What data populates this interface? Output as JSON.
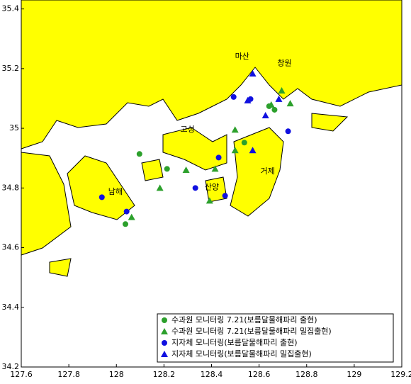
{
  "chart_data": {
    "type": "scatter",
    "xlim": [
      127.6,
      129.2
    ],
    "ylim": [
      34.2,
      35.43
    ],
    "xticks": [
      127.6,
      127.8,
      128,
      128.2,
      128.4,
      128.6,
      128.8,
      129,
      129.2
    ],
    "yticks": [
      34.2,
      34.4,
      34.6,
      34.8,
      35,
      35.2,
      35.4
    ],
    "annotations": [
      {
        "text": "마산",
        "x": 128.529,
        "y": 35.24
      },
      {
        "text": "창원",
        "x": 128.707,
        "y": 35.217
      },
      {
        "text": "고성",
        "x": 128.299,
        "y": 34.995
      },
      {
        "text": "거제",
        "x": 128.636,
        "y": 34.855
      },
      {
        "text": "남해",
        "x": 127.996,
        "y": 34.786
      },
      {
        "text": "산양",
        "x": 128.401,
        "y": 34.802
      }
    ],
    "series": [
      {
        "name": "수과원 모니터링 7.21(보름달물해파리 출현)",
        "color": "#2ca02c",
        "marker": "circle",
        "x": [
          128.097,
          128.213,
          128.038,
          128.538,
          128.665,
          128.642
        ],
        "values": [
          34.914,
          34.864,
          34.679,
          34.952,
          35.062,
          35.074
        ]
      },
      {
        "name": "수과원 모니터링 7.21(보름달물해파리 밀집출현)",
        "color": "#2ca02c",
        "marker": "triangle",
        "x": [
          128.293,
          128.183,
          128.064,
          128.499,
          128.499,
          128.415,
          128.392,
          128.731,
          128.651,
          128.695
        ],
        "values": [
          34.86,
          34.8,
          34.702,
          34.995,
          34.926,
          34.864,
          34.757,
          35.083,
          35.079,
          35.126
        ]
      },
      {
        "name": "지자체 모니터링(보름달물해파리 출현)",
        "color": "#1010e0",
        "marker": "circle",
        "x": [
          127.939,
          128.043,
          128.332,
          128.457,
          128.43,
          128.493,
          128.722,
          128.564
        ],
        "values": [
          34.769,
          34.721,
          34.8,
          34.774,
          34.902,
          35.105,
          34.99,
          35.098
        ]
      },
      {
        "name": "지자체 모니터링(보름달물해파리 밀집출현)",
        "color": "#1010e0",
        "marker": "triangle",
        "x": [
          128.573,
          128.552,
          128.627,
          128.573,
          128.683
        ],
        "values": [
          35.183,
          35.093,
          35.043,
          34.926,
          35.098
        ]
      }
    ]
  }
}
